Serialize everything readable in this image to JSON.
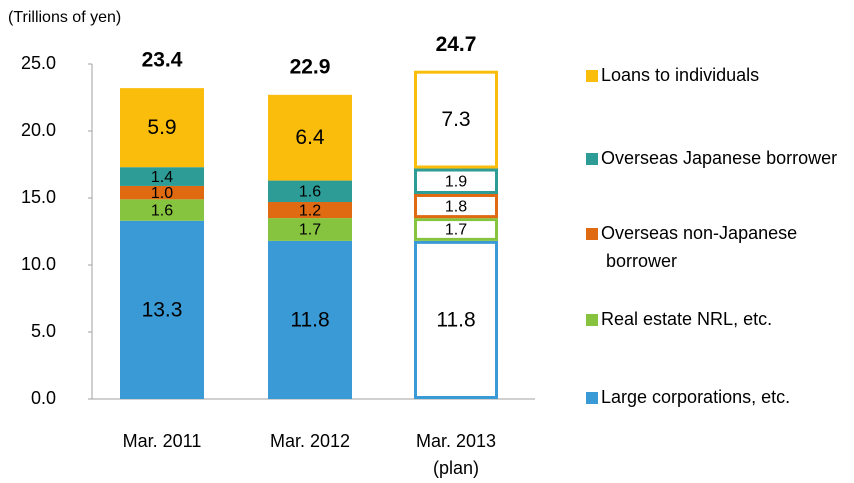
{
  "chart_data": {
    "type": "stacked_bar",
    "y_axis_label": "(Trillions of yen)",
    "categories": [
      [
        "Mar. 2011"
      ],
      [
        "Mar. 2012"
      ],
      [
        "Mar. 2013",
        "(plan)"
      ]
    ],
    "bar_styles": [
      "solid",
      "solid",
      "outline"
    ],
    "totals": [
      23.4,
      22.9,
      24.7
    ],
    "series": [
      {
        "name": "Large corporations, etc.",
        "color": "#3a9ad6",
        "label_color": "#ffffff",
        "values": [
          13.3,
          11.8,
          11.8
        ],
        "value_labels": [
          "13.3",
          "11.8",
          "11.8"
        ]
      },
      {
        "name": "Real estate NRL, etc.",
        "color": "#86c440",
        "label_color": "#000000",
        "values": [
          1.6,
          1.7,
          1.7
        ],
        "value_labels": [
          "1.6",
          "1.7",
          "1.7"
        ]
      },
      {
        "name": "Overseas non-Japanese borrower",
        "color": "#e06a12",
        "label_color": "#000000",
        "values": [
          1.0,
          1.2,
          1.8
        ],
        "value_labels": [
          "1.0",
          "1.2",
          "1.8"
        ]
      },
      {
        "name": "Overseas Japanese borrower",
        "color": "#2e9c96",
        "label_color": "#ffffff",
        "values": [
          1.4,
          1.6,
          1.9
        ],
        "value_labels": [
          "1.4",
          "1.6",
          "1.9"
        ]
      },
      {
        "name": "Loans to individuals",
        "color": "#fbbd0c",
        "label_color": "#000000",
        "values": [
          5.9,
          6.4,
          7.3
        ],
        "value_labels": [
          "5.9",
          "6.4",
          "7.3"
        ]
      }
    ],
    "ylim": [
      0,
      25
    ],
    "yticks": [
      {
        "value": 0,
        "label": "0.0"
      },
      {
        "value": 5,
        "label": "5.0"
      },
      {
        "value": 10,
        "label": "10.0"
      },
      {
        "value": 15,
        "label": "15.0"
      },
      {
        "value": 20,
        "label": "20.0"
      },
      {
        "value": 25,
        "label": "25.0"
      }
    ],
    "grid": false
  }
}
